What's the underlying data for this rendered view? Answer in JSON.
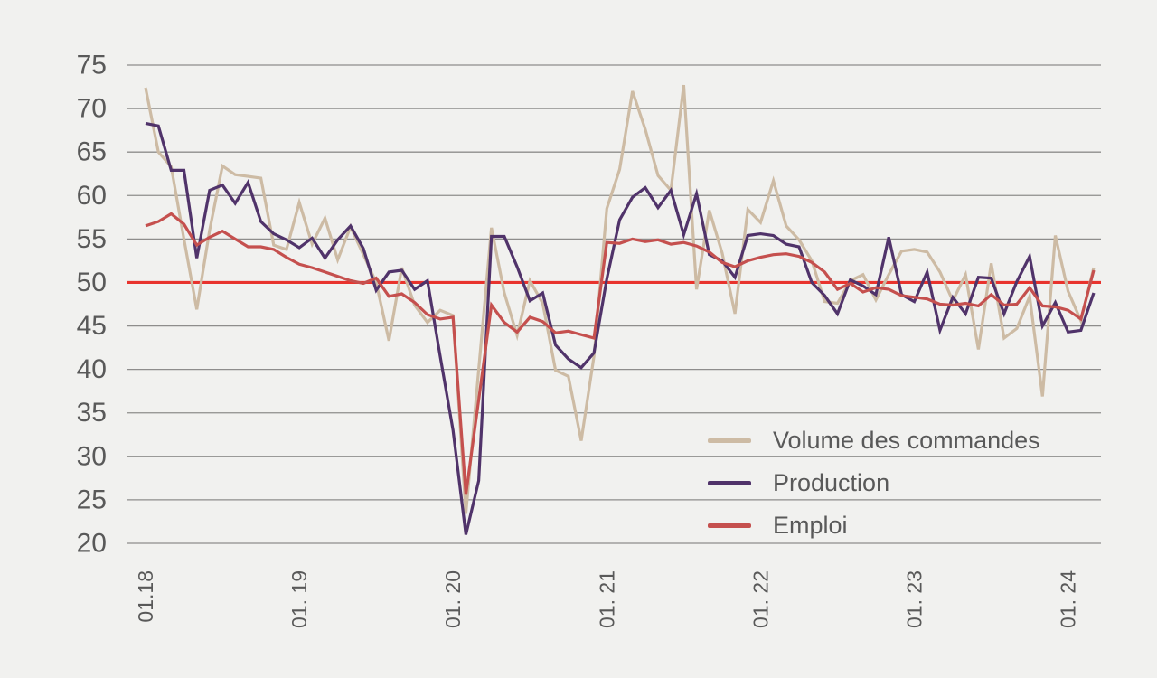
{
  "chart_data": {
    "type": "line",
    "title": "",
    "xlabel": "",
    "ylabel": "",
    "ylim": [
      20,
      75
    ],
    "y_ticks": [
      75,
      70,
      65,
      60,
      55,
      50,
      45,
      40,
      35,
      30,
      25,
      20
    ],
    "x_tick_labels": [
      "01.18",
      "01. 19",
      "01. 20",
      "01. 21",
      "01. 22",
      "01. 23",
      "01. 24"
    ],
    "x_tick_month_indices": [
      0,
      12,
      24,
      36,
      48,
      60,
      72
    ],
    "grid": "horizontal-only",
    "legend_position": "inside-bottom-right",
    "reference_line": {
      "value": 50,
      "color": "#e8332d"
    },
    "colors": {
      "background": "#f1f1ef",
      "gridline": "#8e8d8c",
      "axis_text": "#595959",
      "volume": "#cdbba4",
      "production": "#50336a",
      "emploi": "#c5504e"
    },
    "x": [
      "2018-01",
      "2018-02",
      "2018-03",
      "2018-04",
      "2018-05",
      "2018-06",
      "2018-07",
      "2018-08",
      "2018-09",
      "2018-10",
      "2018-11",
      "2018-12",
      "2019-01",
      "2019-02",
      "2019-03",
      "2019-04",
      "2019-05",
      "2019-06",
      "2019-07",
      "2019-08",
      "2019-09",
      "2019-10",
      "2019-11",
      "2019-12",
      "2020-01",
      "2020-02",
      "2020-03",
      "2020-04",
      "2020-05",
      "2020-06",
      "2020-07",
      "2020-08",
      "2020-09",
      "2020-10",
      "2020-11",
      "2020-12",
      "2021-01",
      "2021-02",
      "2021-03",
      "2021-04",
      "2021-05",
      "2021-06",
      "2021-07",
      "2021-08",
      "2021-09",
      "2021-10",
      "2021-11",
      "2021-12",
      "2022-01",
      "2022-02",
      "2022-03",
      "2022-04",
      "2022-05",
      "2022-06",
      "2022-07",
      "2022-08",
      "2022-09",
      "2022-10",
      "2022-11",
      "2022-12",
      "2023-01",
      "2023-02",
      "2023-03",
      "2023-04",
      "2023-05",
      "2023-06",
      "2023-07",
      "2023-08",
      "2023-09",
      "2023-10",
      "2023-11",
      "2023-12",
      "2024-01",
      "2024-02",
      "2024-03"
    ],
    "series": [
      {
        "name": "Volume des commandes",
        "color_key": "volume",
        "values": [
          72.4,
          65.0,
          63.3,
          55.0,
          46.9,
          56.0,
          63.4,
          62.4,
          62.2,
          62.0,
          54.3,
          53.8,
          59.2,
          54.4,
          57.4,
          52.6,
          56.4,
          53.2,
          50.0,
          43.3,
          51.7,
          47.4,
          45.4,
          46.8,
          46.2,
          23.4,
          40.0,
          56.3,
          48.8,
          43.9,
          50.2,
          47.6,
          39.9,
          39.2,
          31.8,
          41.5,
          58.5,
          63.0,
          72.0,
          67.6,
          62.3,
          60.6,
          72.7,
          49.2,
          58.3,
          53.4,
          46.4,
          58.4,
          56.9,
          61.7,
          56.5,
          54.9,
          52.5,
          47.8,
          47.6,
          50.2,
          50.9,
          48.0,
          50.9,
          53.6,
          53.8,
          53.5,
          51.2,
          47.9,
          50.9,
          42.3,
          52.2,
          43.6,
          44.7,
          48.4,
          36.9,
          55.4,
          49.0,
          45.6,
          51.7
        ]
      },
      {
        "name": "Production",
        "color_key": "production",
        "values": [
          68.3,
          68.0,
          62.9,
          62.9,
          52.8,
          60.6,
          61.2,
          59.1,
          61.5,
          57.0,
          55.6,
          54.9,
          54.0,
          55.1,
          52.8,
          54.9,
          56.5,
          53.9,
          49.1,
          51.2,
          51.4,
          49.2,
          50.2,
          41.5,
          33.0,
          21.0,
          27.2,
          55.3,
          55.3,
          51.8,
          47.9,
          48.8,
          42.8,
          41.2,
          40.2,
          41.9,
          50.4,
          57.2,
          59.8,
          60.9,
          58.6,
          60.6,
          55.5,
          60.2,
          53.2,
          52.5,
          50.6,
          55.4,
          55.6,
          55.4,
          54.4,
          54.1,
          50.0,
          48.5,
          46.4,
          50.3,
          49.6,
          48.6,
          55.2,
          48.6,
          47.8,
          51.2,
          44.5,
          48.3,
          46.4,
          50.6,
          50.5,
          46.4,
          50.1,
          53.0,
          45.0,
          47.7,
          44.3,
          44.5,
          48.8
        ]
      },
      {
        "name": "Emploi",
        "color_key": "emploi",
        "values": [
          56.5,
          57.0,
          57.9,
          56.7,
          54.3,
          55.2,
          55.9,
          55.0,
          54.1,
          54.1,
          53.8,
          52.9,
          52.1,
          51.7,
          51.2,
          50.7,
          50.2,
          49.9,
          50.5,
          48.4,
          48.7,
          47.7,
          46.3,
          45.8,
          46.0,
          25.6,
          36.5,
          47.4,
          45.4,
          44.3,
          46.0,
          45.5,
          44.2,
          44.4,
          44.0,
          43.6,
          54.6,
          54.5,
          55.0,
          54.7,
          54.9,
          54.4,
          54.6,
          54.2,
          53.5,
          52.3,
          51.8,
          52.5,
          52.9,
          53.2,
          53.3,
          53.0,
          52.3,
          51.2,
          49.2,
          49.9,
          48.9,
          49.4,
          49.2,
          48.5,
          48.3,
          48.1,
          47.5,
          47.4,
          47.6,
          47.3,
          48.6,
          47.4,
          47.5,
          49.4,
          47.3,
          47.2,
          46.8,
          45.8,
          51.4
        ]
      }
    ]
  },
  "legend": {
    "items": [
      {
        "label": "Volume des commandes"
      },
      {
        "label": "Production"
      },
      {
        "label": "Emploi"
      }
    ]
  }
}
